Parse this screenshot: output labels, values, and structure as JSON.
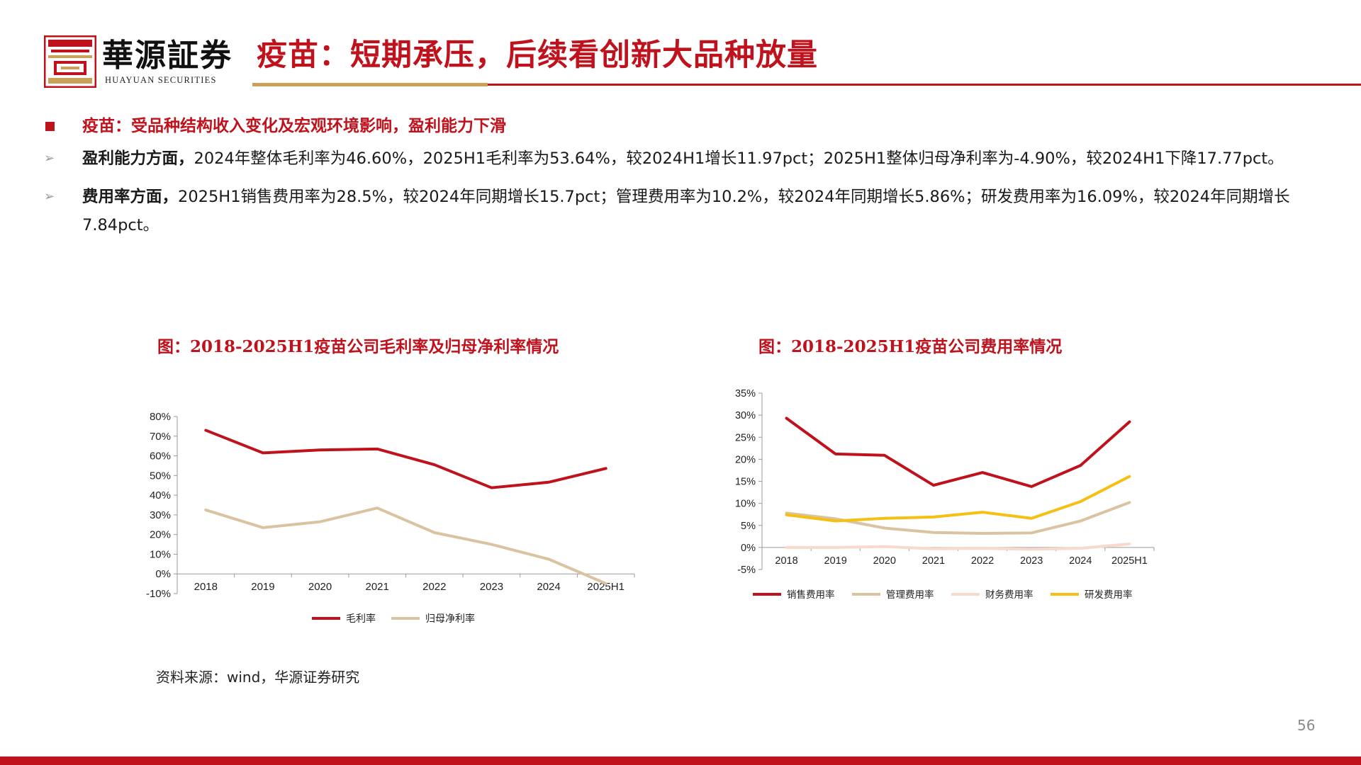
{
  "header": {
    "logo_text": "華源証券",
    "logo_sub": "HUAYUAN SECURITIES",
    "title": "疫苗：短期承压，后续看创新大品种放量"
  },
  "bullets": {
    "main": "疫苗：受品种结构收入变化及宏观环境影响，盈利能力下滑",
    "profit_label": "盈利能力方面，",
    "profit_text": "2024年整体毛利率为46.60%，2025H1毛利率为53.64%，较2024H1增长11.97pct；2025H1整体归母净利率为-4.90%，较2024H1下降17.77pct。",
    "expense_label": "费用率方面，",
    "expense_text": "2025H1销售费用率为28.5%，较2024年同期增长15.7pct；管理费用率为10.2%，较2024年同期增长5.86%；研发费用率为16.09%，较2024年同期增长7.84pct。"
  },
  "chart_titles": {
    "left": "图：2018-2025H1疫苗公司毛利率及归母净利率情况",
    "right": "图：2018-2025H1疫苗公司费用率情况"
  },
  "source": "资料来源：wind，华源证券研究",
  "page_number": "56",
  "chart_data": [
    {
      "type": "line",
      "title": "图：2018-2025H1疫苗公司毛利率及归母净利率情况",
      "categories": [
        "2018",
        "2019",
        "2020",
        "2021",
        "2022",
        "2023",
        "2024",
        "2025H1"
      ],
      "ylim": [
        -10,
        80
      ],
      "yticks": [
        -10,
        0,
        10,
        20,
        30,
        40,
        50,
        60,
        70,
        80
      ],
      "ytick_labels": [
        "-10%",
        "0%",
        "10%",
        "20%",
        "30%",
        "40%",
        "50%",
        "60%",
        "70%",
        "80%"
      ],
      "legend_position": "bottom",
      "series": [
        {
          "name": "毛利率",
          "color": "#c0121c",
          "values": [
            73,
            61.5,
            63,
            63.5,
            55.5,
            43.8,
            46.6,
            53.6
          ]
        },
        {
          "name": "归母净利率",
          "color": "#d9c3a0",
          "values": [
            32.5,
            23.5,
            26.5,
            33.5,
            21,
            15,
            7.5,
            -4.9
          ]
        }
      ]
    },
    {
      "type": "line",
      "title": "图：2018-2025H1疫苗公司费用率情况",
      "categories": [
        "2018",
        "2019",
        "2020",
        "2021",
        "2022",
        "2023",
        "2024",
        "2025H1"
      ],
      "ylim": [
        -5,
        35
      ],
      "yticks": [
        -5,
        0,
        5,
        10,
        15,
        20,
        25,
        30,
        35
      ],
      "ytick_labels": [
        "-5%",
        "0%",
        "5%",
        "10%",
        "15%",
        "20%",
        "25%",
        "30%",
        "35%"
      ],
      "legend_position": "bottom",
      "series": [
        {
          "name": "销售费用率",
          "color": "#c0121c",
          "values": [
            29.3,
            21.2,
            20.9,
            14.1,
            17,
            13.8,
            18.6,
            28.5
          ]
        },
        {
          "name": "管理费用率",
          "color": "#d9c3a0",
          "values": [
            7.8,
            6.5,
            4.4,
            3.4,
            3.2,
            3.3,
            6,
            10.2
          ]
        },
        {
          "name": "财务费用率",
          "color": "#f8d9cc",
          "values": [
            0,
            0,
            0.2,
            -0.3,
            -0.2,
            -0.4,
            -0.2,
            0.8
          ]
        },
        {
          "name": "研发费用率",
          "color": "#f5bf13",
          "values": [
            7.4,
            6,
            6.6,
            6.9,
            8,
            6.6,
            10.4,
            16.1
          ]
        }
      ]
    }
  ]
}
